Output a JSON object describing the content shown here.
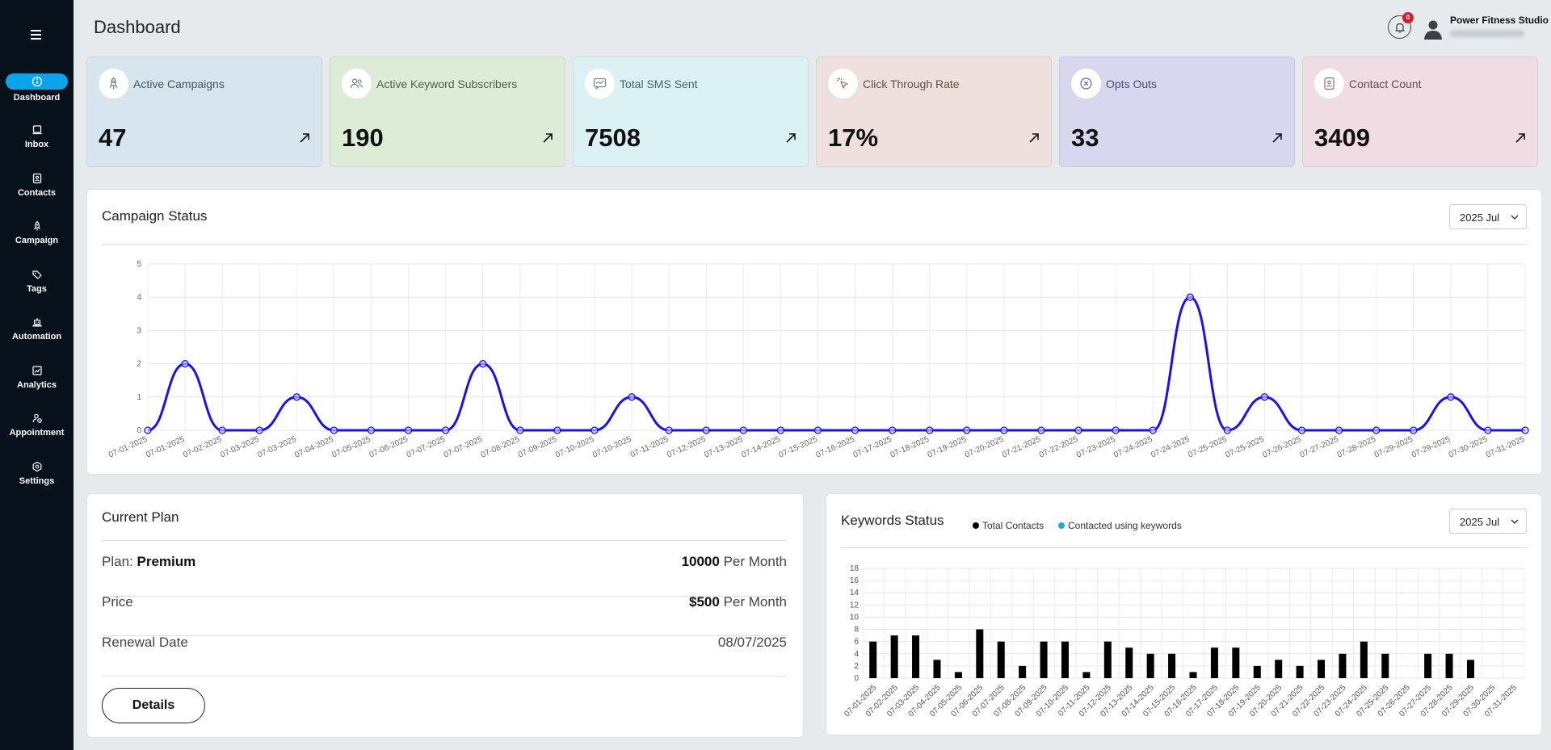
{
  "sidebar": {
    "items": [
      {
        "label": "Dashboard",
        "icon": "info-icon",
        "active": true
      },
      {
        "label": "Inbox",
        "icon": "inbox-icon"
      },
      {
        "label": "Contacts",
        "icon": "contacts-icon"
      },
      {
        "label": "Campaign",
        "icon": "rocket-icon"
      },
      {
        "label": "Tags",
        "icon": "tag-icon"
      },
      {
        "label": "Automation",
        "icon": "robot-icon"
      },
      {
        "label": "Analytics",
        "icon": "chart-icon"
      },
      {
        "label": "Appointment",
        "icon": "appointment-icon"
      },
      {
        "label": "Settings",
        "icon": "gear-icon"
      }
    ]
  },
  "header": {
    "title": "Dashboard",
    "notification_count": "0",
    "org_name": "Power Fitness Studio"
  },
  "stats": [
    {
      "title": "Active Campaigns",
      "value": "47",
      "bg": "#d7e5ef",
      "title_color": "#3d5566",
      "icon": "rocket-icon"
    },
    {
      "title": "Active Keyword Subscribers",
      "value": "190",
      "bg": "#dcecd7",
      "title_color": "#46654a",
      "icon": "users-icon"
    },
    {
      "title": "Total SMS Sent",
      "value": "7508",
      "bg": "#dcf1f4",
      "title_color": "#3d6470",
      "icon": "message-icon"
    },
    {
      "title": "Click Through Rate",
      "value": "17%",
      "bg": "#ede0dd",
      "title_color": "#6e4a42",
      "icon": "pointer-icon"
    },
    {
      "title": "Opts Outs",
      "value": "33",
      "bg": "#d9d7ef",
      "title_color": "#4c4a72",
      "icon": "opt-out-icon"
    },
    {
      "title": "Contact Count",
      "value": "3409",
      "bg": "#f0dde3",
      "title_color": "#6b4651",
      "icon": "contact-card-icon"
    }
  ],
  "campaign_status": {
    "title": "Campaign Status",
    "period": "2025 Jul"
  },
  "current_plan": {
    "title": "Current Plan",
    "plan_label": "Plan: ",
    "plan_name": "Premium",
    "plan_amount": "10000",
    "plan_unit": " Per Month",
    "price_label": "Price",
    "price_amount": "$500",
    "price_unit": " Per Month",
    "renewal_label": "Renewal Date",
    "renewal_date": "08/07/2025",
    "details_label": "Details"
  },
  "keywords_status": {
    "title": "Keywords Status",
    "period": "2025 Jul",
    "legend_total": "Total Contacts",
    "legend_keywords": "Contacted using keywords",
    "total_color": "#000000",
    "keywords_color": "#1aa7ec"
  },
  "chart_data": [
    {
      "type": "line",
      "title": "Campaign Status",
      "x": [
        "07-01-2025",
        "07-01-2025",
        "07-02-2025",
        "07-03-2025",
        "07-03-2025",
        "07-04-2025",
        "07-05-2025",
        "07-06-2025",
        "07-07-2025",
        "07-07-2025",
        "07-08-2025",
        "07-09-2025",
        "07-10-2025",
        "07-10-2025",
        "07-11-2025",
        "07-12-2025",
        "07-13-2025",
        "07-14-2025",
        "07-15-2025",
        "07-16-2025",
        "07-17-2025",
        "07-18-2025",
        "07-19-2025",
        "07-20-2025",
        "07-21-2025",
        "07-22-2025",
        "07-23-2025",
        "07-24-2025",
        "07-24-2025",
        "07-25-2025",
        "07-25-2025",
        "07-26-2025",
        "07-27-2025",
        "07-28-2025",
        "07-29-2025",
        "07-29-2025",
        "07-30-2025",
        "07-31-2025"
      ],
      "series": [
        {
          "values": [
            0,
            2,
            0,
            0,
            1,
            0,
            0,
            0,
            0,
            2,
            0,
            0,
            0,
            1,
            0,
            0,
            0,
            0,
            0,
            0,
            0,
            0,
            0,
            0,
            0,
            0,
            0,
            0,
            4,
            0,
            1,
            0,
            0,
            0,
            0,
            1,
            0,
            0
          ],
          "color": "#1a12e6"
        }
      ],
      "ylim": [
        0,
        5
      ],
      "yticks": [
        0,
        1,
        2,
        3,
        4,
        5
      ],
      "grid": true
    },
    {
      "type": "bar",
      "title": "Keywords Status",
      "categories": [
        "07-01-2025",
        "07-02-2025",
        "07-03-2025",
        "07-04-2025",
        "07-05-2025",
        "07-06-2025",
        "07-07-2025",
        "07-08-2025",
        "07-09-2025",
        "07-10-2025",
        "07-11-2025",
        "07-12-2025",
        "07-13-2025",
        "07-14-2025",
        "07-15-2025",
        "07-16-2025",
        "07-17-2025",
        "07-18-2025",
        "07-19-2025",
        "07-20-2025",
        "07-21-2025",
        "07-22-2025",
        "07-23-2025",
        "07-24-2025",
        "07-25-2025",
        "07-26-2025",
        "07-27-2025",
        "07-28-2025",
        "07-29-2025",
        "07-30-2025",
        "07-31-2025"
      ],
      "series": [
        {
          "name": "Total Contacts",
          "values": [
            6,
            7,
            7,
            3,
            1,
            8,
            6,
            2,
            6,
            6,
            1,
            6,
            5,
            4,
            4,
            1,
            5,
            5,
            2,
            3,
            2,
            3,
            4,
            6,
            4,
            0,
            4,
            4,
            3,
            0,
            0
          ],
          "color": "#000000"
        },
        {
          "name": "Contacted using keywords",
          "values": [
            0,
            0,
            0,
            0,
            0,
            0,
            0,
            0,
            0,
            0,
            0,
            0,
            0,
            0,
            0,
            0,
            0,
            0,
            0,
            0,
            0,
            0,
            0,
            0,
            0,
            0,
            0,
            0,
            0,
            0,
            0
          ],
          "color": "#1aa7ec"
        }
      ],
      "ylim": [
        0,
        18
      ],
      "yticks": [
        0,
        2,
        4,
        6,
        8,
        10,
        12,
        14,
        16,
        18
      ],
      "legend": "top-left",
      "grid": true
    }
  ]
}
